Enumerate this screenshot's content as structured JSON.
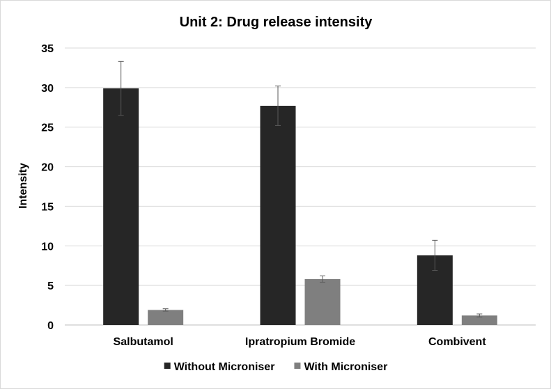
{
  "chart_data": {
    "type": "bar",
    "title": "Unit 2: Drug release intensity",
    "xlabel": "",
    "ylabel": "Intensity",
    "categories": [
      "Salbutamol",
      "Ipratropium Bromide",
      "Combivent"
    ],
    "ylim": [
      0,
      35
    ],
    "yticks": [
      0,
      5,
      10,
      15,
      20,
      25,
      30,
      35
    ],
    "grid": true,
    "legend_position": "bottom",
    "series": [
      {
        "name": "Without Microniser",
        "color": "#262626",
        "values": [
          29.9,
          27.7,
          8.8
        ],
        "errors": [
          3.4,
          2.5,
          1.9
        ]
      },
      {
        "name": "With Microniser",
        "color": "#7f7f7f",
        "values": [
          1.9,
          5.8,
          1.2
        ],
        "errors": [
          0.15,
          0.4,
          0.2
        ]
      }
    ]
  }
}
